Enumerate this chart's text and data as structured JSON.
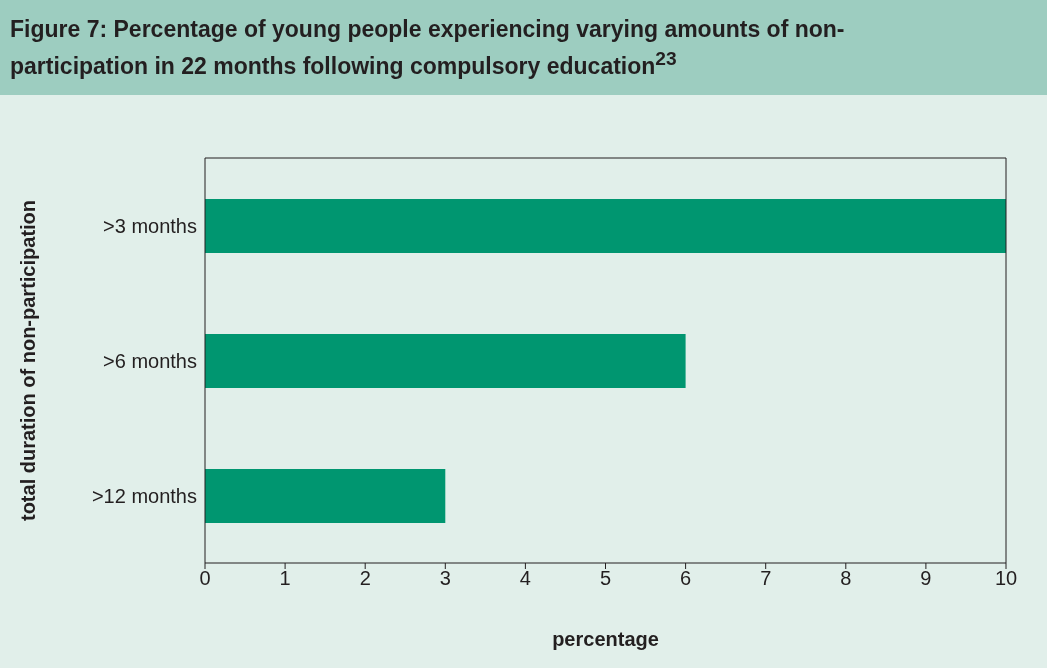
{
  "chart_data": {
    "type": "bar",
    "orientation": "horizontal",
    "title": "Figure 7: Percentage of young people experiencing varying amounts of non-participation in 22 months following compulsory education$^{23}$",
    "xlabel": "percentage",
    "ylabel": "total duration of non-participation",
    "categories": [
      ">3 months",
      ">6 months",
      ">12 months"
    ],
    "values": [
      10,
      6,
      3
    ],
    "color": "#009670",
    "xlim": [
      0,
      10
    ],
    "xticks": [
      0,
      1,
      2,
      3,
      4,
      5,
      6,
      7,
      8,
      9,
      10
    ]
  }
}
